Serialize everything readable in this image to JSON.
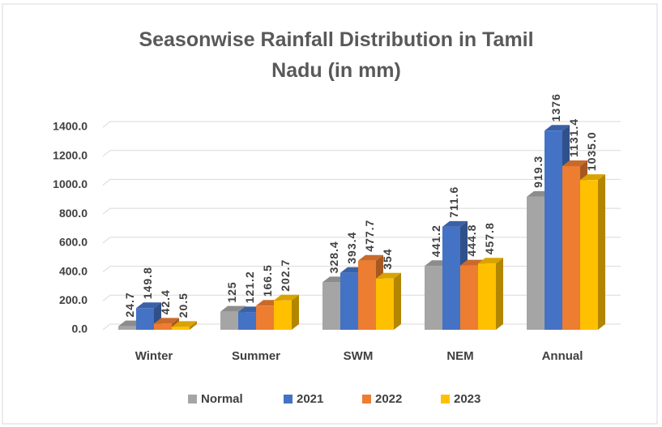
{
  "chart_data": {
    "type": "bar3d",
    "title": "Seasonwise Rainfall Distribution in Tamil Nadu (in mm)",
    "categories": [
      "Winter",
      "Summer",
      "SWM",
      "NEM",
      "Annual"
    ],
    "series": [
      {
        "name": "Normal",
        "color": "#a5a5a5",
        "values": [
          24.7,
          125,
          328.4,
          441.2,
          919.3
        ],
        "value_labels": [
          "24.7",
          "125",
          "328.4",
          "441.2",
          "919.3"
        ]
      },
      {
        "name": "2021",
        "color": "#4472c4",
        "values": [
          149.8,
          121.2,
          393.4,
          711.6,
          1376
        ],
        "value_labels": [
          "149.8",
          "121.2",
          "393.4",
          "711.6",
          "1376"
        ]
      },
      {
        "name": "2022",
        "color": "#ed7d31",
        "values": [
          42.4,
          166.5,
          477.7,
          444.8,
          1131.4
        ],
        "value_labels": [
          "42.4",
          "166.5",
          "477.7",
          "444.8",
          "1131.4"
        ]
      },
      {
        "name": "2023",
        "color": "#ffc000",
        "values": [
          20.5,
          202.7,
          354,
          457.8,
          1035
        ],
        "value_labels": [
          "20.5",
          "202.7",
          "354",
          "457.8",
          "1035.0"
        ]
      }
    ],
    "ylim": [
      0,
      1400
    ],
    "yticks": [
      {
        "value": 0,
        "label": "0.0"
      },
      {
        "value": 200,
        "label": "200.0"
      },
      {
        "value": 400,
        "label": "400.0"
      },
      {
        "value": 600,
        "label": "600.0"
      },
      {
        "value": 800,
        "label": "800.0"
      },
      {
        "value": 1000,
        "label": "1000.0"
      },
      {
        "value": 1200,
        "label": "1200.0"
      },
      {
        "value": 1400,
        "label": "1400.0"
      }
    ],
    "grid": true,
    "legend": "bottom"
  }
}
